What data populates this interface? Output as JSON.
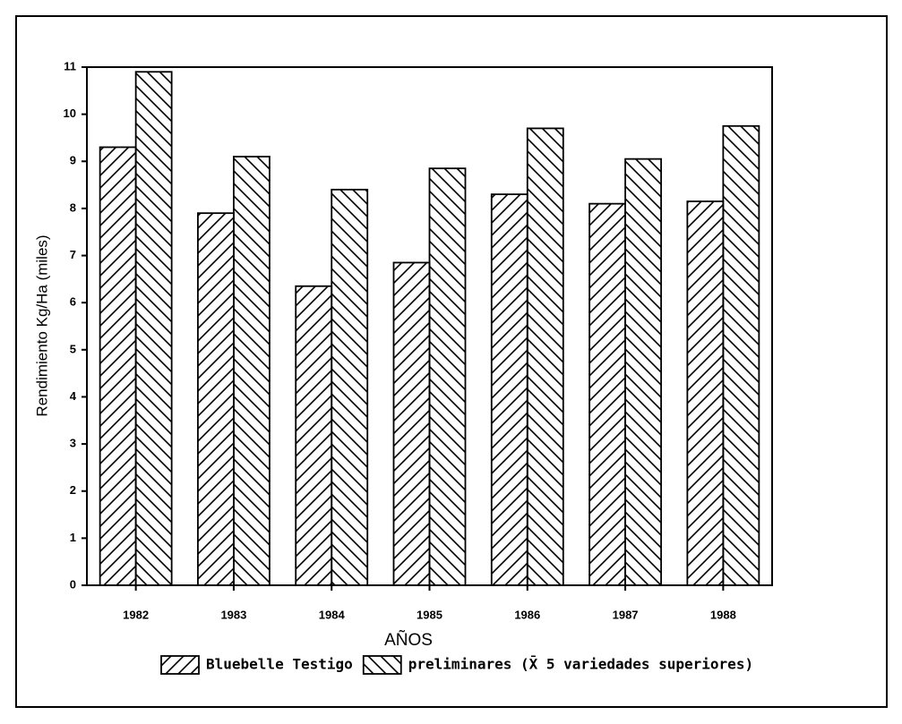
{
  "chart_data": {
    "type": "bar",
    "categories": [
      "1982",
      "1983",
      "1984",
      "1985",
      "1986",
      "1987",
      "1988"
    ],
    "series": [
      {
        "name": "Bluebelle Testigo",
        "color": "#000000",
        "hatch": "/",
        "values": [
          9.3,
          7.9,
          6.35,
          6.85,
          8.3,
          8.1,
          8.15
        ]
      },
      {
        "name": "preliminares (X̄ 5 variedades superiores)",
        "color": "#000000",
        "hatch": "\\",
        "values": [
          10.9,
          9.1,
          8.4,
          8.85,
          9.7,
          9.05,
          9.75
        ]
      }
    ],
    "xlabel": "AÑOS",
    "ylabel": "Rendimiento Kg/Ha (miles)",
    "ylim": [
      0,
      11
    ],
    "yticks": [
      0,
      1,
      2,
      3,
      4,
      5,
      6,
      7,
      8,
      9,
      10,
      11
    ],
    "legend": "bottom"
  }
}
